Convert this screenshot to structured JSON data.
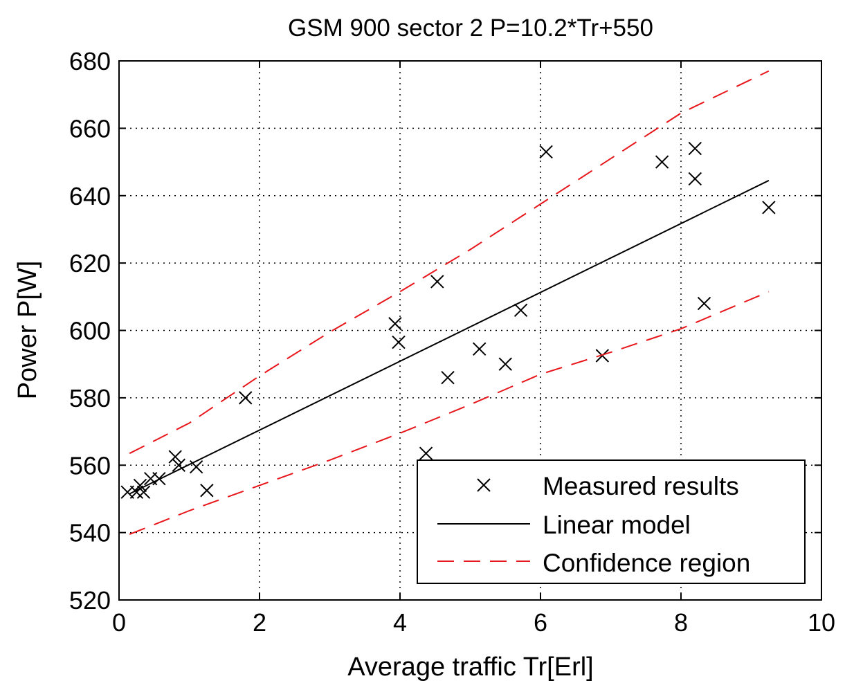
{
  "colors": {
    "background": "#ffffff",
    "axis": "#000000",
    "grid": "#000000",
    "measured": "#000000",
    "linear_model": "#000000",
    "confidence": "#e8161b"
  },
  "chart_data": {
    "type": "scatter",
    "title": "GSM 900 sector 2   P=10.2*Tr+550",
    "xlabel": "Average traffic Tr[Erl]",
    "ylabel": "Power P[W]",
    "xlim": [
      0,
      10
    ],
    "ylim": [
      520,
      680
    ],
    "xticks": [
      0,
      2,
      4,
      6,
      8,
      10
    ],
    "yticks": [
      520,
      540,
      560,
      580,
      600,
      620,
      640,
      660,
      680
    ],
    "grid": true,
    "legend_position": "bottom-right",
    "legend": [
      {
        "key": "measured",
        "label": "Measured results",
        "style": "x-marker"
      },
      {
        "key": "linear",
        "label": "Linear model",
        "style": "solid-line"
      },
      {
        "key": "confidence",
        "label": "Confidence region",
        "style": "dashed-line"
      }
    ],
    "series": [
      {
        "name": "Measured results",
        "kind": "points",
        "points": [
          [
            0.12,
            552
          ],
          [
            0.25,
            552
          ],
          [
            0.3,
            554
          ],
          [
            0.35,
            552
          ],
          [
            0.45,
            556
          ],
          [
            0.57,
            556
          ],
          [
            0.8,
            562.5
          ],
          [
            0.85,
            560
          ],
          [
            1.1,
            559.5
          ],
          [
            1.25,
            552.5
          ],
          [
            1.8,
            580
          ],
          [
            3.93,
            602
          ],
          [
            3.98,
            596.5
          ],
          [
            4.37,
            563.5
          ],
          [
            4.53,
            614.5
          ],
          [
            4.68,
            586
          ],
          [
            5.13,
            594.5
          ],
          [
            5.5,
            590
          ],
          [
            5.72,
            606
          ],
          [
            6.08,
            653
          ],
          [
            6.88,
            592.5
          ],
          [
            7.73,
            650
          ],
          [
            8.2,
            654
          ],
          [
            8.2,
            645
          ],
          [
            8.33,
            608
          ],
          [
            9.25,
            636.5
          ]
        ]
      },
      {
        "name": "Linear model",
        "kind": "line",
        "x": [
          0.15,
          9.25
        ],
        "y": [
          551.5,
          644.5
        ]
      },
      {
        "name": "Confidence region upper",
        "kind": "dashed",
        "x": [
          0.15,
          1,
          2,
          3,
          4,
          5,
          6,
          7,
          8,
          9.25
        ],
        "y": [
          563.5,
          572.5,
          586.5,
          599.5,
          611.5,
          624,
          637.5,
          651,
          664.5,
          677
        ]
      },
      {
        "name": "Confidence region lower",
        "kind": "dashed",
        "x": [
          0.15,
          1,
          2,
          3,
          4,
          5,
          6,
          7,
          8,
          9.25
        ],
        "y": [
          539.5,
          546.5,
          554,
          561.5,
          569.5,
          578,
          587,
          593.5,
          600.5,
          611.5
        ]
      }
    ]
  }
}
